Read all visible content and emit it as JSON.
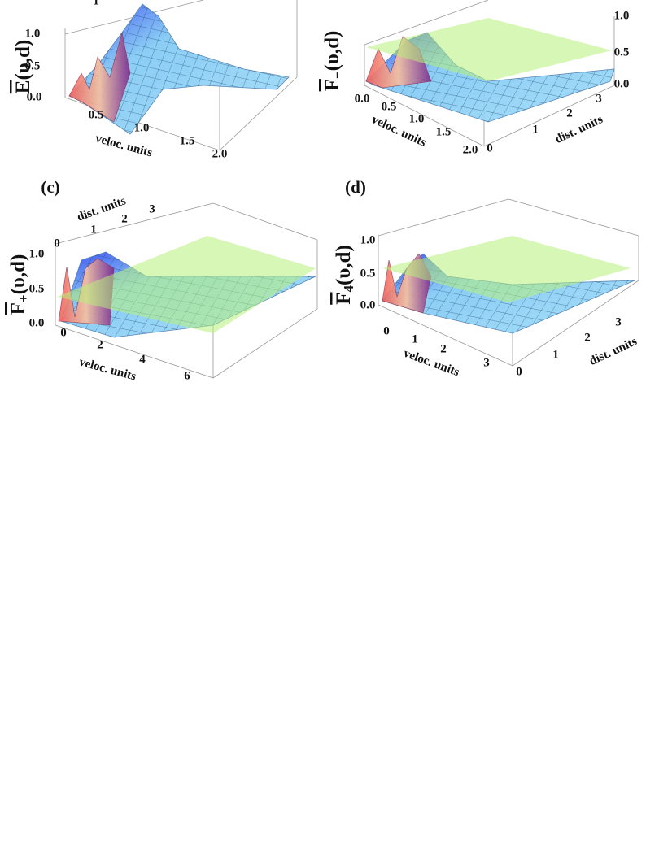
{
  "panels": [
    {
      "top_tick": "1",
      "y_label": {
        "symbol": "E",
        "args": "(υ,d)"
      },
      "z_ticks": [
        "1.0",
        "0.5",
        "0.0"
      ],
      "x_ticks": [
        "0.5",
        "1.0",
        "1.5",
        "2.0"
      ],
      "x_label": "veloc. units"
    },
    {
      "y_label": {
        "symbol": "F",
        "subscript": "−",
        "args": "(υ,d)"
      },
      "z_ticks": [
        "1.0",
        "0.5",
        "0.0"
      ],
      "x_ticks": [
        "0.0",
        "0.5",
        "1.0",
        "1.5",
        "2.0"
      ],
      "x_label": "veloc. units",
      "d_ticks": [
        "0",
        "1",
        "2",
        "3"
      ],
      "d_label": "dist. units"
    },
    {
      "label": "(c)",
      "y_label": {
        "symbol": "F",
        "subscript": "+",
        "args": "(υ,d)"
      },
      "z_ticks": [
        "1.0",
        "0.5",
        "0.0"
      ],
      "x_ticks": [
        "0",
        "2",
        "4",
        "6"
      ],
      "x_label": "veloc. units",
      "d_ticks": [
        "0",
        "1",
        "2",
        "3"
      ],
      "d_label": "dist. units"
    },
    {
      "label": "(d)",
      "y_label": {
        "symbol": "F",
        "subscript": "4",
        "args": "(υ,d)"
      },
      "z_ticks": [
        "1.0",
        "0.5",
        "0.0"
      ],
      "x_ticks": [
        "0",
        "1",
        "2",
        "3"
      ],
      "x_label": "veloc. units",
      "d_ticks": [
        "0",
        "1",
        "2",
        "3"
      ],
      "d_label": "dist. units"
    }
  ]
}
